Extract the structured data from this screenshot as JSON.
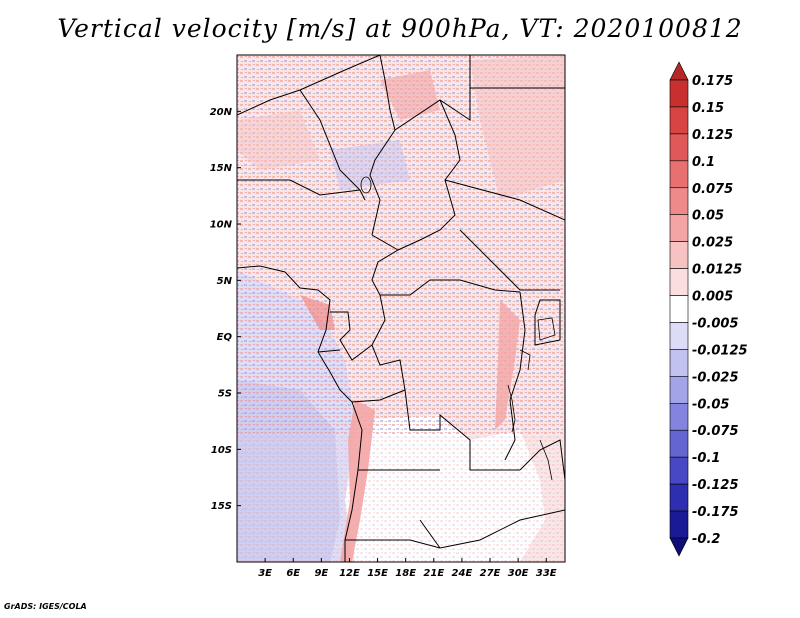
{
  "title": "Vertical velocity [m/s] at 900hPa, VT: 2020100812",
  "credit": "GrADS: IGES/COLA",
  "map": {
    "lon_range": [
      0,
      35
    ],
    "lat_range": [
      -20,
      25
    ],
    "lat_ticks": [
      {
        "value": 20,
        "label": "20N"
      },
      {
        "value": 15,
        "label": "15N"
      },
      {
        "value": 10,
        "label": "10N"
      },
      {
        "value": 5,
        "label": "5N"
      },
      {
        "value": 0,
        "label": "EQ"
      },
      {
        "value": -5,
        "label": "5S"
      },
      {
        "value": -10,
        "label": "10S"
      },
      {
        "value": -15,
        "label": "15S"
      }
    ],
    "lon_ticks": [
      {
        "value": 3,
        "label": "3E"
      },
      {
        "value": 6,
        "label": "6E"
      },
      {
        "value": 9,
        "label": "9E"
      },
      {
        "value": 12,
        "label": "12E"
      },
      {
        "value": 15,
        "label": "15E"
      },
      {
        "value": 18,
        "label": "18E"
      },
      {
        "value": 21,
        "label": "21E"
      },
      {
        "value": 24,
        "label": "24E"
      },
      {
        "value": 27,
        "label": "27E"
      },
      {
        "value": 30,
        "label": "30E"
      },
      {
        "value": 33,
        "label": "33E"
      }
    ]
  },
  "colorbar": {
    "labels": [
      "0.175",
      "0.15",
      "0.125",
      "0.1",
      "0.075",
      "0.05",
      "0.025",
      "0.0125",
      "0.005",
      "-0.005",
      "-0.0125",
      "-0.025",
      "-0.05",
      "-0.075",
      "-0.1",
      "-0.125",
      "-0.175",
      "-0.2"
    ],
    "colors": [
      "#b52828",
      "#c83030",
      "#d84444",
      "#e05858",
      "#e87070",
      "#ee8a8a",
      "#f3a5a5",
      "#f7c2c2",
      "#fbdede",
      "#ffffff",
      "#dcdcf6",
      "#c2c2f0",
      "#a3a3e8",
      "#8484de",
      "#6565d2",
      "#4848c4",
      "#2e2eb0",
      "#1a1a96",
      "#0e0e7a"
    ]
  }
}
